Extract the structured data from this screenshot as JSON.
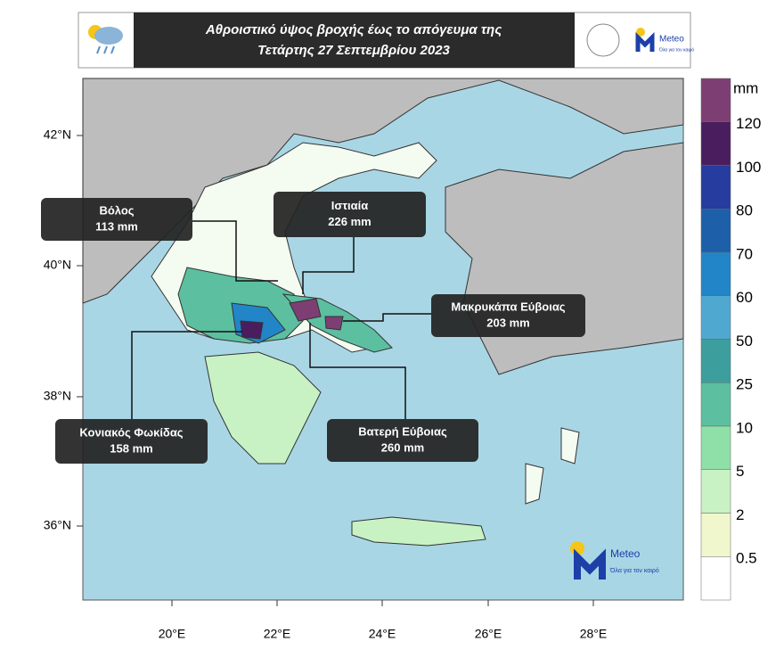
{
  "header": {
    "title_line1": "Αθροιστικό ύψος βροχής έως το απόγευμα της",
    "title_line2": "Τετάρτης 27 Σεπτεμβρίου 2023",
    "logo_text": "Meteo",
    "logo_small": "Όλα για τον καιρό"
  },
  "map": {
    "lat_labels": [
      "42°N",
      "40°N",
      "38°N",
      "36°N"
    ],
    "lon_labels": [
      "20°E",
      "22°E",
      "24°E",
      "26°E",
      "28°E"
    ],
    "callouts": [
      {
        "place": "Βόλος",
        "amount": "113 mm"
      },
      {
        "place": "Ιστιαία",
        "amount": "226 mm"
      },
      {
        "place": "Μακρυκάπα Εύβοιας",
        "amount": "203 mm"
      },
      {
        "place": "Κονιακός Φωκίδας",
        "amount": "158 mm"
      },
      {
        "place": "Βατερή Εύβοιας",
        "amount": "260 mm"
      }
    ],
    "logo_text": "Meteo",
    "logo_small": "Όλα για τον καιρό"
  },
  "colorbar": {
    "unit": "mm",
    "levels": [
      120,
      100,
      80,
      70,
      60,
      50,
      25,
      10,
      5,
      2,
      0.5
    ],
    "colors": [
      "#7d3f73",
      "#4a1e5e",
      "#263c9e",
      "#1d5fa8",
      "#2285c8",
      "#4fa8cf",
      "#3d9e9e",
      "#5cbfa0",
      "#8fe0a8",
      "#c8f2c4",
      "#f0f7cc",
      "#ffffff"
    ]
  }
}
